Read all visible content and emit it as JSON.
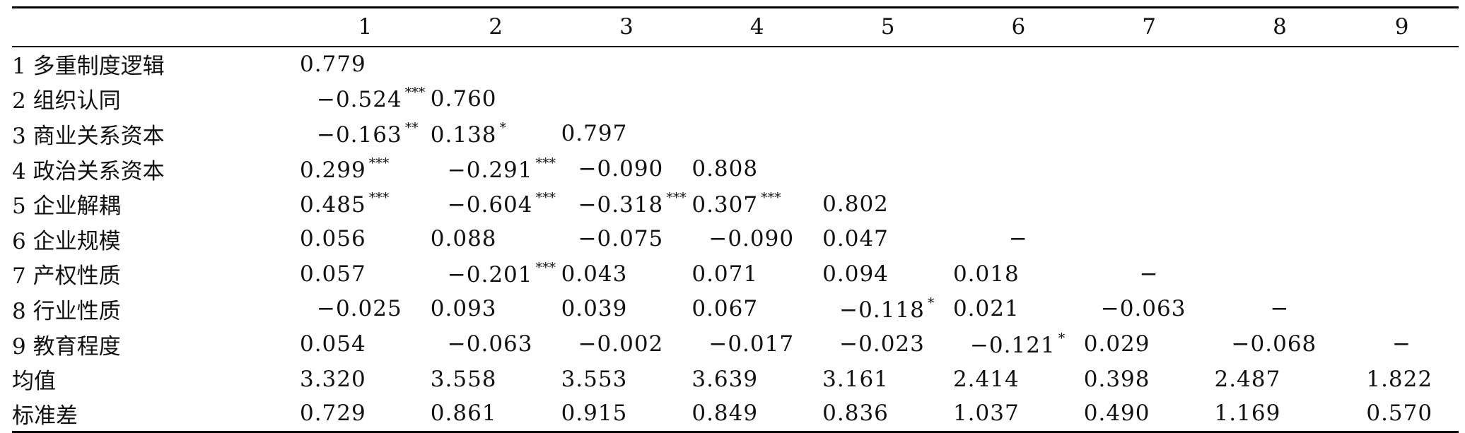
{
  "table": {
    "headers": [
      "",
      "1",
      "2",
      "3",
      "4",
      "5",
      "6",
      "7",
      "8",
      "9"
    ],
    "rows": [
      {
        "label": "1 多重制度逻辑",
        "cells": [
          {
            "v": "0.779",
            "s": ""
          },
          null,
          null,
          null,
          null,
          null,
          null,
          null,
          null
        ]
      },
      {
        "label": "2 组织认同",
        "cells": [
          {
            "v": "−0.524",
            "s": "***"
          },
          {
            "v": "0.760",
            "s": ""
          },
          null,
          null,
          null,
          null,
          null,
          null,
          null
        ]
      },
      {
        "label": "3 商业关系资本",
        "cells": [
          {
            "v": "−0.163",
            "s": "**"
          },
          {
            "v": "0.138",
            "s": "*"
          },
          {
            "v": "0.797",
            "s": ""
          },
          null,
          null,
          null,
          null,
          null,
          null
        ]
      },
      {
        "label": "4 政治关系资本",
        "cells": [
          {
            "v": "0.299",
            "s": "***"
          },
          {
            "v": "−0.291",
            "s": "***"
          },
          {
            "v": "−0.090",
            "s": ""
          },
          {
            "v": "0.808",
            "s": ""
          },
          null,
          null,
          null,
          null,
          null
        ]
      },
      {
        "label": "5 企业解耦",
        "cells": [
          {
            "v": "0.485",
            "s": "***"
          },
          {
            "v": "−0.604",
            "s": "***"
          },
          {
            "v": "−0.318",
            "s": "***"
          },
          {
            "v": "0.307",
            "s": "***"
          },
          {
            "v": "0.802",
            "s": ""
          },
          null,
          null,
          null,
          null
        ]
      },
      {
        "label": "6 企业规模",
        "cells": [
          {
            "v": "0.056",
            "s": ""
          },
          {
            "v": "0.088",
            "s": ""
          },
          {
            "v": "−0.075",
            "s": ""
          },
          {
            "v": "−0.090",
            "s": ""
          },
          {
            "v": "0.047",
            "s": ""
          },
          {
            "v": "−",
            "s": ""
          },
          null,
          null,
          null
        ]
      },
      {
        "label": "7 产权性质",
        "cells": [
          {
            "v": "0.057",
            "s": ""
          },
          {
            "v": "−0.201",
            "s": "***"
          },
          {
            "v": "0.043",
            "s": ""
          },
          {
            "v": "0.071",
            "s": ""
          },
          {
            "v": "0.094",
            "s": ""
          },
          {
            "v": "0.018",
            "s": ""
          },
          {
            "v": "−",
            "s": ""
          },
          null,
          null
        ]
      },
      {
        "label": "8 行业性质",
        "cells": [
          {
            "v": "−0.025",
            "s": ""
          },
          {
            "v": "0.093",
            "s": ""
          },
          {
            "v": "0.039",
            "s": ""
          },
          {
            "v": "0.067",
            "s": ""
          },
          {
            "v": "−0.118",
            "s": "*"
          },
          {
            "v": "0.021",
            "s": ""
          },
          {
            "v": "−0.063",
            "s": ""
          },
          {
            "v": "−",
            "s": ""
          },
          null
        ]
      },
      {
        "label": "9 教育程度",
        "cells": [
          {
            "v": "0.054",
            "s": ""
          },
          {
            "v": "−0.063",
            "s": ""
          },
          {
            "v": "−0.002",
            "s": ""
          },
          {
            "v": "−0.017",
            "s": ""
          },
          {
            "v": "−0.023",
            "s": ""
          },
          {
            "v": "−0.121",
            "s": "*"
          },
          {
            "v": "0.029",
            "s": ""
          },
          {
            "v": "−0.068",
            "s": ""
          },
          {
            "v": "−",
            "s": ""
          }
        ]
      },
      {
        "label": "均值",
        "cells": [
          {
            "v": "3.320",
            "s": ""
          },
          {
            "v": "3.558",
            "s": ""
          },
          {
            "v": "3.553",
            "s": ""
          },
          {
            "v": "3.639",
            "s": ""
          },
          {
            "v": "3.161",
            "s": ""
          },
          {
            "v": "2.414",
            "s": ""
          },
          {
            "v": "0.398",
            "s": ""
          },
          {
            "v": "2.487",
            "s": ""
          },
          {
            "v": "1.822",
            "s": ""
          }
        ]
      },
      {
        "label": "标准差",
        "cells": [
          {
            "v": "0.729",
            "s": ""
          },
          {
            "v": "0.861",
            "s": ""
          },
          {
            "v": "0.915",
            "s": ""
          },
          {
            "v": "0.849",
            "s": ""
          },
          {
            "v": "0.836",
            "s": ""
          },
          {
            "v": "1.037",
            "s": ""
          },
          {
            "v": "0.490",
            "s": ""
          },
          {
            "v": "1.169",
            "s": ""
          },
          {
            "v": "0.570",
            "s": ""
          }
        ]
      }
    ]
  }
}
